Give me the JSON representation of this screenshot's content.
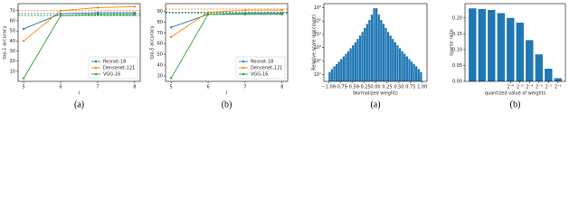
{
  "chart_data": [
    {
      "type": "line",
      "caption": "(a)",
      "x_label": "l",
      "y_label": "top-1 accuracy",
      "x": [
        5,
        6,
        7,
        8
      ],
      "xlim": [
        4.85,
        8.15
      ],
      "xticks": [
        5,
        6,
        7,
        8
      ],
      "ylim": [
        0,
        77
      ],
      "yticks": [
        10,
        20,
        30,
        40,
        50,
        60,
        70
      ],
      "legend": "lower right",
      "series": [
        {
          "name": "Resnet-18",
          "color": "#1f77b4",
          "values": [
            52,
            67,
            68,
            68
          ],
          "reference": 67
        },
        {
          "name": "Densenet-121",
          "color": "#ff7f0e",
          "values": [
            40,
            70,
            73,
            74
          ],
          "reference": 70
        },
        {
          "name": "VGG-16",
          "color": "#2ca02c",
          "values": [
            3,
            65,
            66,
            66
          ],
          "reference": 65
        }
      ]
    },
    {
      "type": "line",
      "caption": "(b)",
      "x_label": "l",
      "y_label": "top-5 accuracy",
      "x": [
        5,
        6,
        7,
        8
      ],
      "xlim": [
        4.85,
        8.15
      ],
      "xticks": [
        5,
        6,
        7,
        8
      ],
      "ylim": [
        25,
        97
      ],
      "yticks": [
        30,
        40,
        50,
        60,
        70,
        80,
        90
      ],
      "legend": "lower right",
      "series": [
        {
          "name": "Resnet-18",
          "color": "#1f77b4",
          "values": [
            75,
            87,
            88,
            88
          ],
          "reference": 89
        },
        {
          "name": "Densenet-121",
          "color": "#ff7f0e",
          "values": [
            66,
            89,
            91,
            91
          ],
          "reference": 92
        },
        {
          "name": "VGG-16",
          "color": "#2ca02c",
          "values": [
            28,
            87,
            87,
            87
          ],
          "reference": 88
        }
      ]
    },
    {
      "type": "histogram",
      "caption": "(a)",
      "x_label": "Normalized weights",
      "y_label": "Relative scale log(count)",
      "color": "#1f77b4",
      "yscale": "log",
      "bins": [
        -1,
        -0.95,
        -0.9,
        -0.85,
        -0.8,
        -0.75,
        -0.7,
        -0.65,
        -0.6,
        -0.55,
        -0.5,
        -0.45,
        -0.4,
        -0.35,
        -0.3,
        -0.25,
        -0.2,
        -0.15,
        -0.1,
        -0.05,
        0,
        0.05,
        0.1,
        0.15,
        0.2,
        0.25,
        0.3,
        0.35,
        0.4,
        0.45,
        0.5,
        0.55,
        0.6,
        0.65,
        0.7,
        0.75,
        0.8,
        0.85,
        0.9,
        0.95,
        1
      ],
      "values": [
        15,
        25,
        40,
        60,
        90,
        140,
        220,
        350,
        550,
        900,
        1500,
        2500,
        4500,
        8000,
        15000,
        30000,
        60000,
        120000,
        300000,
        900000,
        900000,
        300000,
        120000,
        60000,
        30000,
        15000,
        8000,
        4500,
        2500,
        1500,
        900,
        550,
        350,
        220,
        140,
        90,
        60,
        40,
        25,
        15
      ],
      "xlim": [
        -1.1,
        1.1
      ],
      "xticks": [
        {
          "value": -1,
          "label": "−1.00"
        },
        {
          "value": -0.75,
          "label": "−0.75"
        },
        {
          "value": -0.5,
          "label": "−0.50"
        },
        {
          "value": -0.25,
          "label": "−0.25"
        },
        {
          "value": 0,
          "label": "0.00"
        },
        {
          "value": 0.25,
          "label": "0.25"
        },
        {
          "value": 0.5,
          "label": "0.50"
        },
        {
          "value": 0.75,
          "label": "0.75"
        },
        {
          "value": 1,
          "label": "1.00"
        }
      ],
      "ylim": [
        3,
        2000000
      ],
      "yticks": [
        {
          "value": 10,
          "label": "10¹"
        },
        {
          "value": 100,
          "label": "10²"
        },
        {
          "value": 1000,
          "label": "10³"
        },
        {
          "value": 10000,
          "label": "10⁴"
        },
        {
          "value": 100000,
          "label": "10⁵"
        },
        {
          "value": 1000000,
          "label": "10⁶"
        }
      ]
    },
    {
      "type": "bar",
      "caption": "(b)",
      "x_label": "quantized value of weights",
      "y_label": "sparse ratio",
      "color": "#1f77b4",
      "categories": [
        null,
        null,
        null,
        null,
        "2⁻⁶",
        "2⁻⁵",
        "2⁻⁴",
        "2⁻³",
        "2⁻²",
        "2⁻¹"
      ],
      "values": [
        0.23,
        0.228,
        0.225,
        0.215,
        0.2,
        0.185,
        0.13,
        0.085,
        0.04,
        0.01
      ],
      "ylim": [
        0,
        0.245
      ],
      "yticks": [
        {
          "value": 0,
          "label": "0.00"
        },
        0.05,
        {
          "value": 0.1,
          "label": "0.10"
        },
        0.15,
        {
          "value": 0.2,
          "label": "0.20"
        }
      ]
    }
  ]
}
